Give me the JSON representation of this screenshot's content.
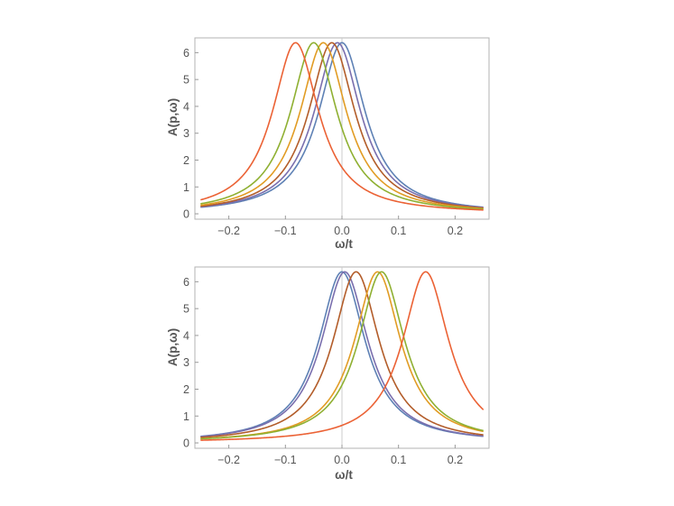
{
  "colors": [
    "#5e81b5",
    "#e19c24",
    "#8fb032",
    "#eb6235",
    "#d47a1f",
    "#b35d2a"
  ],
  "chart_data": [
    {
      "type": "line",
      "xlabel": "ω/t",
      "ylabel": "A(p,ω)",
      "xlim": [
        -0.26,
        0.26
      ],
      "ylim": [
        -0.2,
        6.55
      ],
      "xticks": [
        -0.2,
        -0.1,
        0.0,
        0.1,
        0.2
      ],
      "xtick_labels": [
        "−0.2",
        "−0.1",
        "0.0",
        "0.1",
        "0.2"
      ],
      "yticks": [
        0,
        1,
        2,
        3,
        4,
        5,
        6
      ],
      "ytick_labels": [
        "0",
        "1",
        "2",
        "3",
        "4",
        "5",
        "6"
      ],
      "grid": false,
      "curve_shape": {
        "peak_height": 6.37,
        "half_width": 0.05
      },
      "series": [
        {
          "peak_x": 0.0,
          "color": "#5e81b5"
        },
        {
          "peak_x": -0.008,
          "color": "#7a6fae"
        },
        {
          "peak_x": -0.018,
          "color": "#b35d2a"
        },
        {
          "peak_x": -0.033,
          "color": "#e19c24"
        },
        {
          "peak_x": -0.05,
          "color": "#8fb032"
        },
        {
          "peak_x": -0.082,
          "color": "#eb6235"
        }
      ]
    },
    {
      "type": "line",
      "xlabel": "ω/t",
      "ylabel": "A(p,ω)",
      "xlim": [
        -0.26,
        0.26
      ],
      "ylim": [
        -0.2,
        6.55
      ],
      "xticks": [
        -0.2,
        -0.1,
        0.0,
        0.1,
        0.2
      ],
      "xtick_labels": [
        "−0.2",
        "−0.1",
        "0.0",
        "0.1",
        "0.2"
      ],
      "yticks": [
        0,
        1,
        2,
        3,
        4,
        5,
        6
      ],
      "ytick_labels": [
        "0",
        "1",
        "2",
        "3",
        "4",
        "5",
        "6"
      ],
      "grid": false,
      "curve_shape": {
        "peak_height": 6.37,
        "half_width": 0.05
      },
      "series": [
        {
          "peak_x": 0.0,
          "color": "#5e81b5"
        },
        {
          "peak_x": 0.005,
          "color": "#7a6fae"
        },
        {
          "peak_x": 0.025,
          "color": "#b35d2a"
        },
        {
          "peak_x": 0.063,
          "color": "#e19c24"
        },
        {
          "peak_x": 0.07,
          "color": "#8fb032"
        },
        {
          "peak_x": 0.148,
          "color": "#eb6235"
        }
      ]
    }
  ]
}
